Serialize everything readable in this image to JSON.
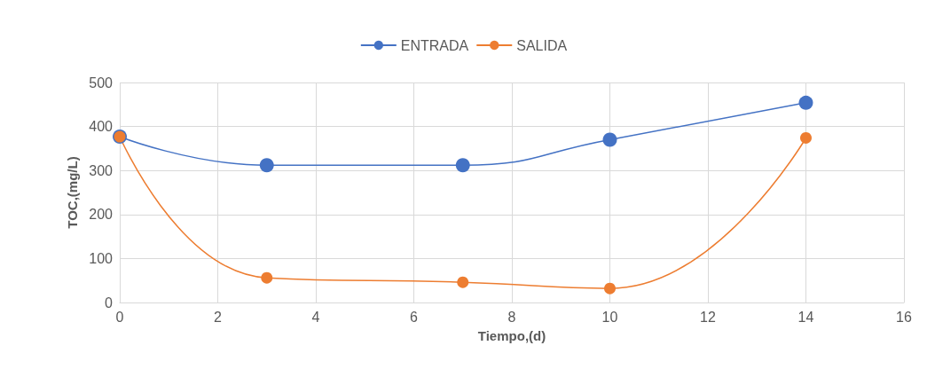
{
  "chart_data": {
    "type": "line",
    "xlabel": "Tiempo,(d)",
    "ylabel": "TOC,(mg/L)",
    "x": [
      0,
      3,
      7,
      10,
      14
    ],
    "series": [
      {
        "name": "ENTRADA",
        "color": "#4472c4",
        "values": [
          377,
          312,
          312,
          370,
          454
        ]
      },
      {
        "name": "SALIDA",
        "color": "#ed7d31",
        "values": [
          377,
          56,
          46,
          32,
          374
        ]
      }
    ],
    "xlim": [
      0,
      16
    ],
    "xticks": [
      0,
      2,
      4,
      6,
      8,
      10,
      12,
      14,
      16
    ],
    "ylim": [
      0,
      500
    ],
    "yticks": [
      0,
      100,
      200,
      300,
      400,
      500
    ],
    "grid": true,
    "legend": "top",
    "marker": "circle"
  }
}
